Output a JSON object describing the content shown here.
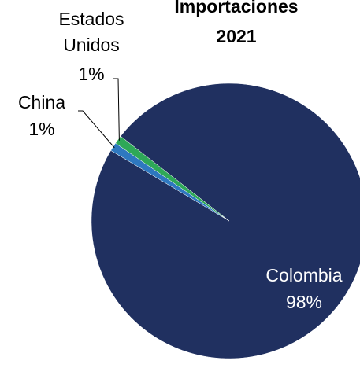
{
  "chart_data": {
    "type": "pie",
    "title_lines": [
      "Importaciones",
      "2021"
    ],
    "slices": [
      {
        "name": "Colombia",
        "value": 98,
        "label": "98%",
        "color": "#203060"
      },
      {
        "name": "China",
        "value": 1,
        "label": "1%",
        "color": "#2E78C0"
      },
      {
        "name": "Estados Unidos",
        "name_lines": [
          "Estados",
          "Unidos"
        ],
        "value": 1,
        "label": "1%",
        "color": "#2EA858"
      }
    ]
  }
}
